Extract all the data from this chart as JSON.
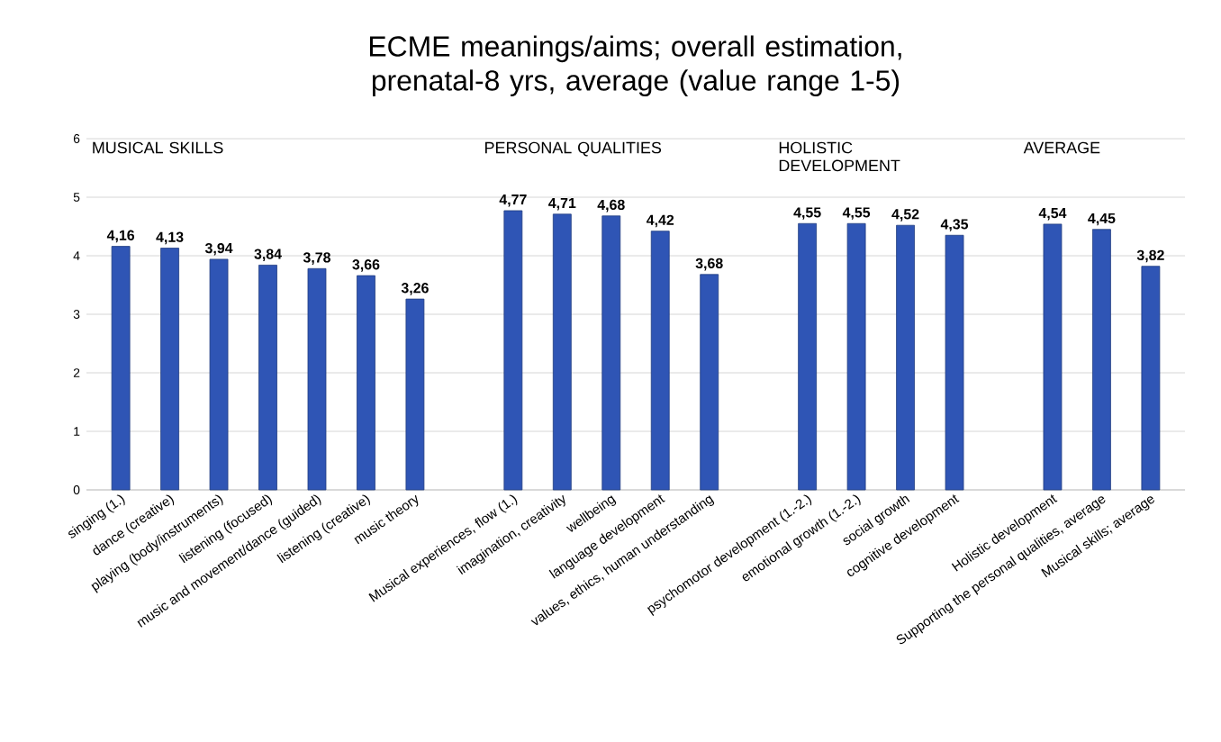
{
  "chart_data": {
    "type": "bar",
    "title": "ECME meanings/aims; overall estimation, prenatal-8 yrs, average (value range 1-5)",
    "categories": [
      "singing (1.)",
      "dance (creative)",
      "playing (body/instruments)",
      "listening (focused)",
      "music and movement/dance (guided)",
      "listening (creative)",
      "music theory",
      null,
      "Musical experiences, flow (1.)",
      "imagination, creativity",
      "wellbeing",
      "language development",
      "values, ethics, human understanding",
      null,
      "psychomotor development (1.-2.)",
      "emotional growth (1.-2.)",
      "social growth",
      "cognitive development",
      null,
      "Holistic development",
      "Supporting the personal qualities, average",
      "Musical skills; average"
    ],
    "values": [
      4.16,
      4.13,
      3.94,
      3.84,
      3.78,
      3.66,
      3.26,
      null,
      4.77,
      4.71,
      4.68,
      4.42,
      3.68,
      null,
      4.55,
      4.55,
      4.52,
      4.35,
      null,
      4.54,
      4.45,
      3.82
    ],
    "value_labels": [
      "4,16",
      "4,13",
      "3,94",
      "3,84",
      "3,78",
      "3,66",
      "3,26",
      null,
      "4,77",
      "4,71",
      "4,68",
      "4,42",
      "3,68",
      null,
      "4,55",
      "4,55",
      "4,52",
      "4,35",
      null,
      "4,54",
      "4,45",
      "3,82"
    ],
    "color": "#2f55b5",
    "ylim": [
      0,
      6
    ],
    "yticks": [
      0,
      1,
      2,
      3,
      4,
      5,
      6
    ],
    "grid": "y",
    "annotations": [
      "MUSICAL SKILLS",
      "PERSONAL QUALITIES",
      "HOLISTIC DEVELOPMENT",
      "AVERAGE"
    ]
  }
}
